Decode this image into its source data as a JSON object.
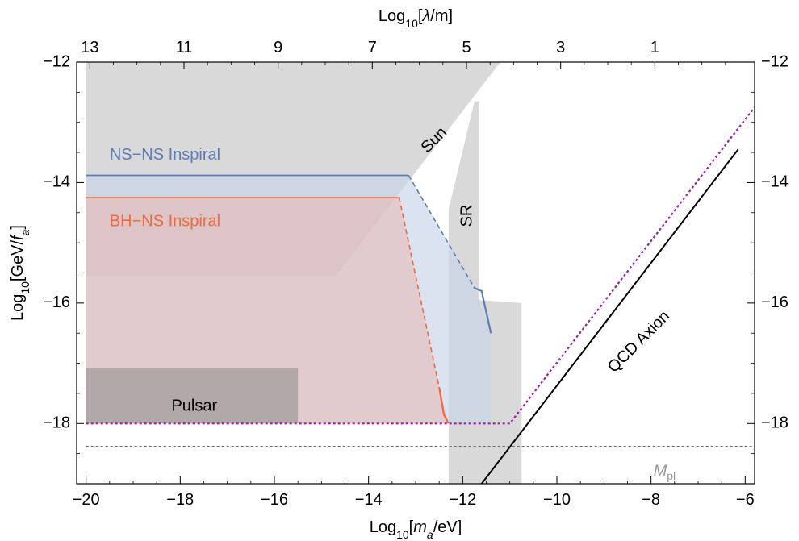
{
  "chart_data": {
    "type": "area",
    "xlabel": "Log10[ma/eV]",
    "ylabel": "Log10[GeV/fa]",
    "top_xlabel": "Log10[λ/m]",
    "xlim": [
      -20.2,
      -5.8
    ],
    "ylim": [
      -19.0,
      -12.0
    ],
    "x_ticks": [
      -20,
      -18,
      -16,
      -14,
      -12,
      -10,
      -8,
      -6
    ],
    "x_tick_labels": [
      "−20",
      "−18",
      "−16",
      "−14",
      "−12",
      "−10",
      "−8",
      "−6"
    ],
    "y_ticks": [
      -18,
      -16,
      -14,
      -12
    ],
    "y_tick_labels": [
      "−18",
      "−16",
      "−14",
      "−12"
    ],
    "top_ticks": [
      13,
      11,
      9,
      7,
      5,
      3,
      1
    ],
    "top_tick_labels": [
      "13",
      "11",
      "9",
      "7",
      "5",
      "3",
      "1"
    ],
    "top_tick_positions_x": [
      -19.92,
      -17.92,
      -15.92,
      -13.92,
      -11.92,
      -9.92,
      -7.92
    ],
    "regions": [
      {
        "name": "Sun",
        "color": "#cfcfcf",
        "opacity": 0.8,
        "points": [
          [
            -20,
            -12
          ],
          [
            -11.2,
            -12
          ],
          [
            -14.7,
            -15.55
          ],
          [
            -20,
            -15.55
          ]
        ]
      },
      {
        "name": "SR",
        "color": "#cfcfcf",
        "opacity": 0.8,
        "points": [
          [
            -12.3,
            -19
          ],
          [
            -12.3,
            -14.45
          ],
          [
            -11.75,
            -12.65
          ],
          [
            -11.65,
            -12.65
          ],
          [
            -11.65,
            -15.95
          ],
          [
            -10.75,
            -16.0
          ],
          [
            -10.75,
            -19
          ]
        ]
      },
      {
        "name": "NS−NS Inspiral",
        "color": "#c7d3e8",
        "opacity": 0.65,
        "points": [
          [
            -20,
            -13.88
          ],
          [
            -13.15,
            -13.88
          ],
          [
            -11.75,
            -15.75
          ],
          [
            -11.4,
            -16.5
          ],
          [
            -11.4,
            -18
          ],
          [
            -20,
            -18
          ]
        ]
      },
      {
        "name": "BH−NS Inspiral",
        "color": "#eab3ac",
        "opacity": 0.5,
        "points": [
          [
            -20,
            -14.25
          ],
          [
            -13.35,
            -14.25
          ],
          [
            -12.5,
            -17.4
          ],
          [
            -12.3,
            -18
          ],
          [
            -20,
            -18
          ]
        ]
      },
      {
        "name": "Pulsar",
        "color": "#8a8a8a",
        "opacity": 0.55,
        "points": [
          [
            -20,
            -17.08
          ],
          [
            -15.5,
            -17.08
          ],
          [
            -15.5,
            -18
          ],
          [
            -20,
            -18
          ]
        ]
      }
    ],
    "lines": [
      {
        "id": "ns-boundary-solid",
        "color": "#5b7db5",
        "dash": "",
        "width": 1.8,
        "points": [
          [
            -20,
            -13.88
          ],
          [
            -13.15,
            -13.88
          ]
        ]
      },
      {
        "id": "ns-boundary-dashed",
        "color": "#5b7db5",
        "dash": "6,4",
        "width": 1.6,
        "points": [
          [
            -13.15,
            -13.88
          ],
          [
            -11.75,
            -15.75
          ]
        ]
      },
      {
        "id": "ns-boundary-end",
        "color": "#5b7db5",
        "dash": "",
        "width": 2.2,
        "points": [
          [
            -11.75,
            -15.75
          ],
          [
            -11.6,
            -15.8
          ],
          [
            -11.4,
            -16.5
          ]
        ]
      },
      {
        "id": "bhns-boundary-solid",
        "color": "#ee6a3e",
        "dash": "",
        "width": 1.8,
        "points": [
          [
            -20,
            -14.25
          ],
          [
            -13.35,
            -14.25
          ]
        ]
      },
      {
        "id": "bhns-boundary-dashed",
        "color": "#ee6a3e",
        "dash": "6,4",
        "width": 1.6,
        "points": [
          [
            -13.35,
            -14.25
          ],
          [
            -12.5,
            -17.4
          ]
        ]
      },
      {
        "id": "bhns-boundary-end",
        "color": "#ee6a3e",
        "dash": "",
        "width": 2.2,
        "points": [
          [
            -12.5,
            -17.4
          ],
          [
            -12.4,
            -17.85
          ],
          [
            -12.3,
            -18
          ]
        ]
      },
      {
        "id": "combined-bound",
        "color": "#9b1fa8",
        "dash": "3,3",
        "width": 2.2,
        "points": [
          [
            -20,
            -18
          ],
          [
            -11.0,
            -18
          ],
          [
            -5.8,
            -12.75
          ]
        ]
      },
      {
        "id": "qcd-axion-line",
        "color": "#000000",
        "dash": "",
        "width": 2.0,
        "points": [
          [
            -11.6,
            -19
          ],
          [
            -6.15,
            -13.45
          ]
        ]
      },
      {
        "id": "mpl-line",
        "color": "#666666",
        "dash": "3,3",
        "width": 1.4,
        "points": [
          [
            -20,
            -18.38
          ],
          [
            -5.8,
            -18.38
          ]
        ]
      }
    ],
    "labels": [
      {
        "id": "sun-label",
        "text": "Sun",
        "color": "#000000",
        "x": -12.6,
        "y": -13.3,
        "rotate": -45,
        "anchor": "middle"
      },
      {
        "id": "sr-label",
        "text": "SR",
        "color": "#000000",
        "x": -11.9,
        "y": -14.55,
        "rotate": -90,
        "anchor": "middle"
      },
      {
        "id": "nsns-label",
        "text": "NS−NS Inspiral",
        "color": "#5b7db5",
        "x": -19.5,
        "y": -13.55,
        "rotate": 0,
        "anchor": "start"
      },
      {
        "id": "bhns-label",
        "text": "BH−NS Inspiral",
        "color": "#ee6a3e",
        "x": -19.5,
        "y": -14.65,
        "rotate": 0,
        "anchor": "start"
      },
      {
        "id": "pulsar-label",
        "text": "Pulsar",
        "color": "#000000",
        "x": -17.7,
        "y": -17.72,
        "rotate": 0,
        "anchor": "middle"
      },
      {
        "id": "qcd-label",
        "text": "QCD Axion",
        "color": "#000000",
        "x": -8.25,
        "y": -16.65,
        "rotate": -45,
        "anchor": "middle"
      }
    ],
    "mpl_label": {
      "text": "M",
      "sub": "pl",
      "color": "#999999",
      "x": -7.95,
      "y": -18.8
    }
  }
}
